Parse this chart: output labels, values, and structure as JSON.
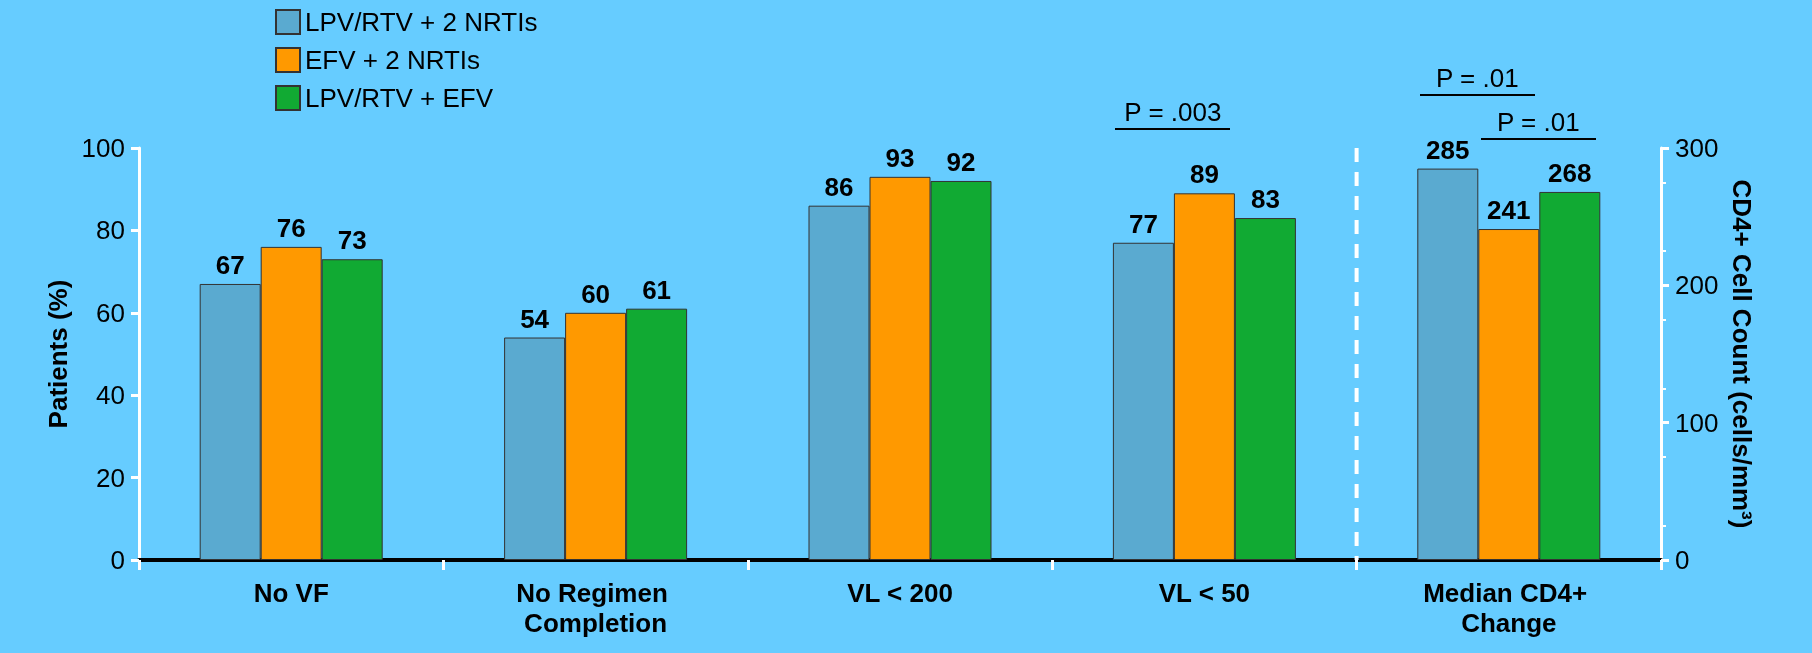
{
  "chart_data": {
    "type": "bar",
    "categories": [
      "No VF",
      "No Regimen Completion",
      "VL < 200",
      "VL < 50",
      "Median CD4+ Change"
    ],
    "series": [
      {
        "name": "LPV/RTV + 2 NRTIs",
        "color": "#5aaad0",
        "values": [
          67,
          54,
          86,
          77,
          null
        ]
      },
      {
        "name": "EFV + 2 NRTIs",
        "color": "#ff9900",
        "values": [
          76,
          60,
          93,
          89,
          null
        ]
      },
      {
        "name": "LPV/RTV + EFV",
        "color": "#11aa33",
        "values": [
          73,
          61,
          92,
          83,
          null
        ]
      },
      {
        "color": "#5aaad0",
        "axis": "y2",
        "values": [
          null,
          null,
          null,
          null,
          285
        ]
      },
      {
        "color": "#ff9900",
        "axis": "y2",
        "values": [
          null,
          null,
          null,
          null,
          241
        ]
      },
      {
        "color": "#11aa33",
        "axis": "y2",
        "values": [
          null,
          null,
          null,
          null,
          268
        ]
      }
    ],
    "ylabel": "Patients (%)",
    "y2label": "CD4+ Cell Count (cells/mm³)",
    "ylim": [
      0,
      100
    ],
    "yticks": [
      0,
      20,
      40,
      60,
      80,
      100
    ],
    "y2lim": [
      0,
      300
    ],
    "y2ticks": [
      0,
      100,
      200,
      300
    ],
    "annotations": [
      "P = .003",
      "P = .01",
      "P = .01"
    ],
    "data_labels": true,
    "legend": "top left",
    "grid": false
  }
}
